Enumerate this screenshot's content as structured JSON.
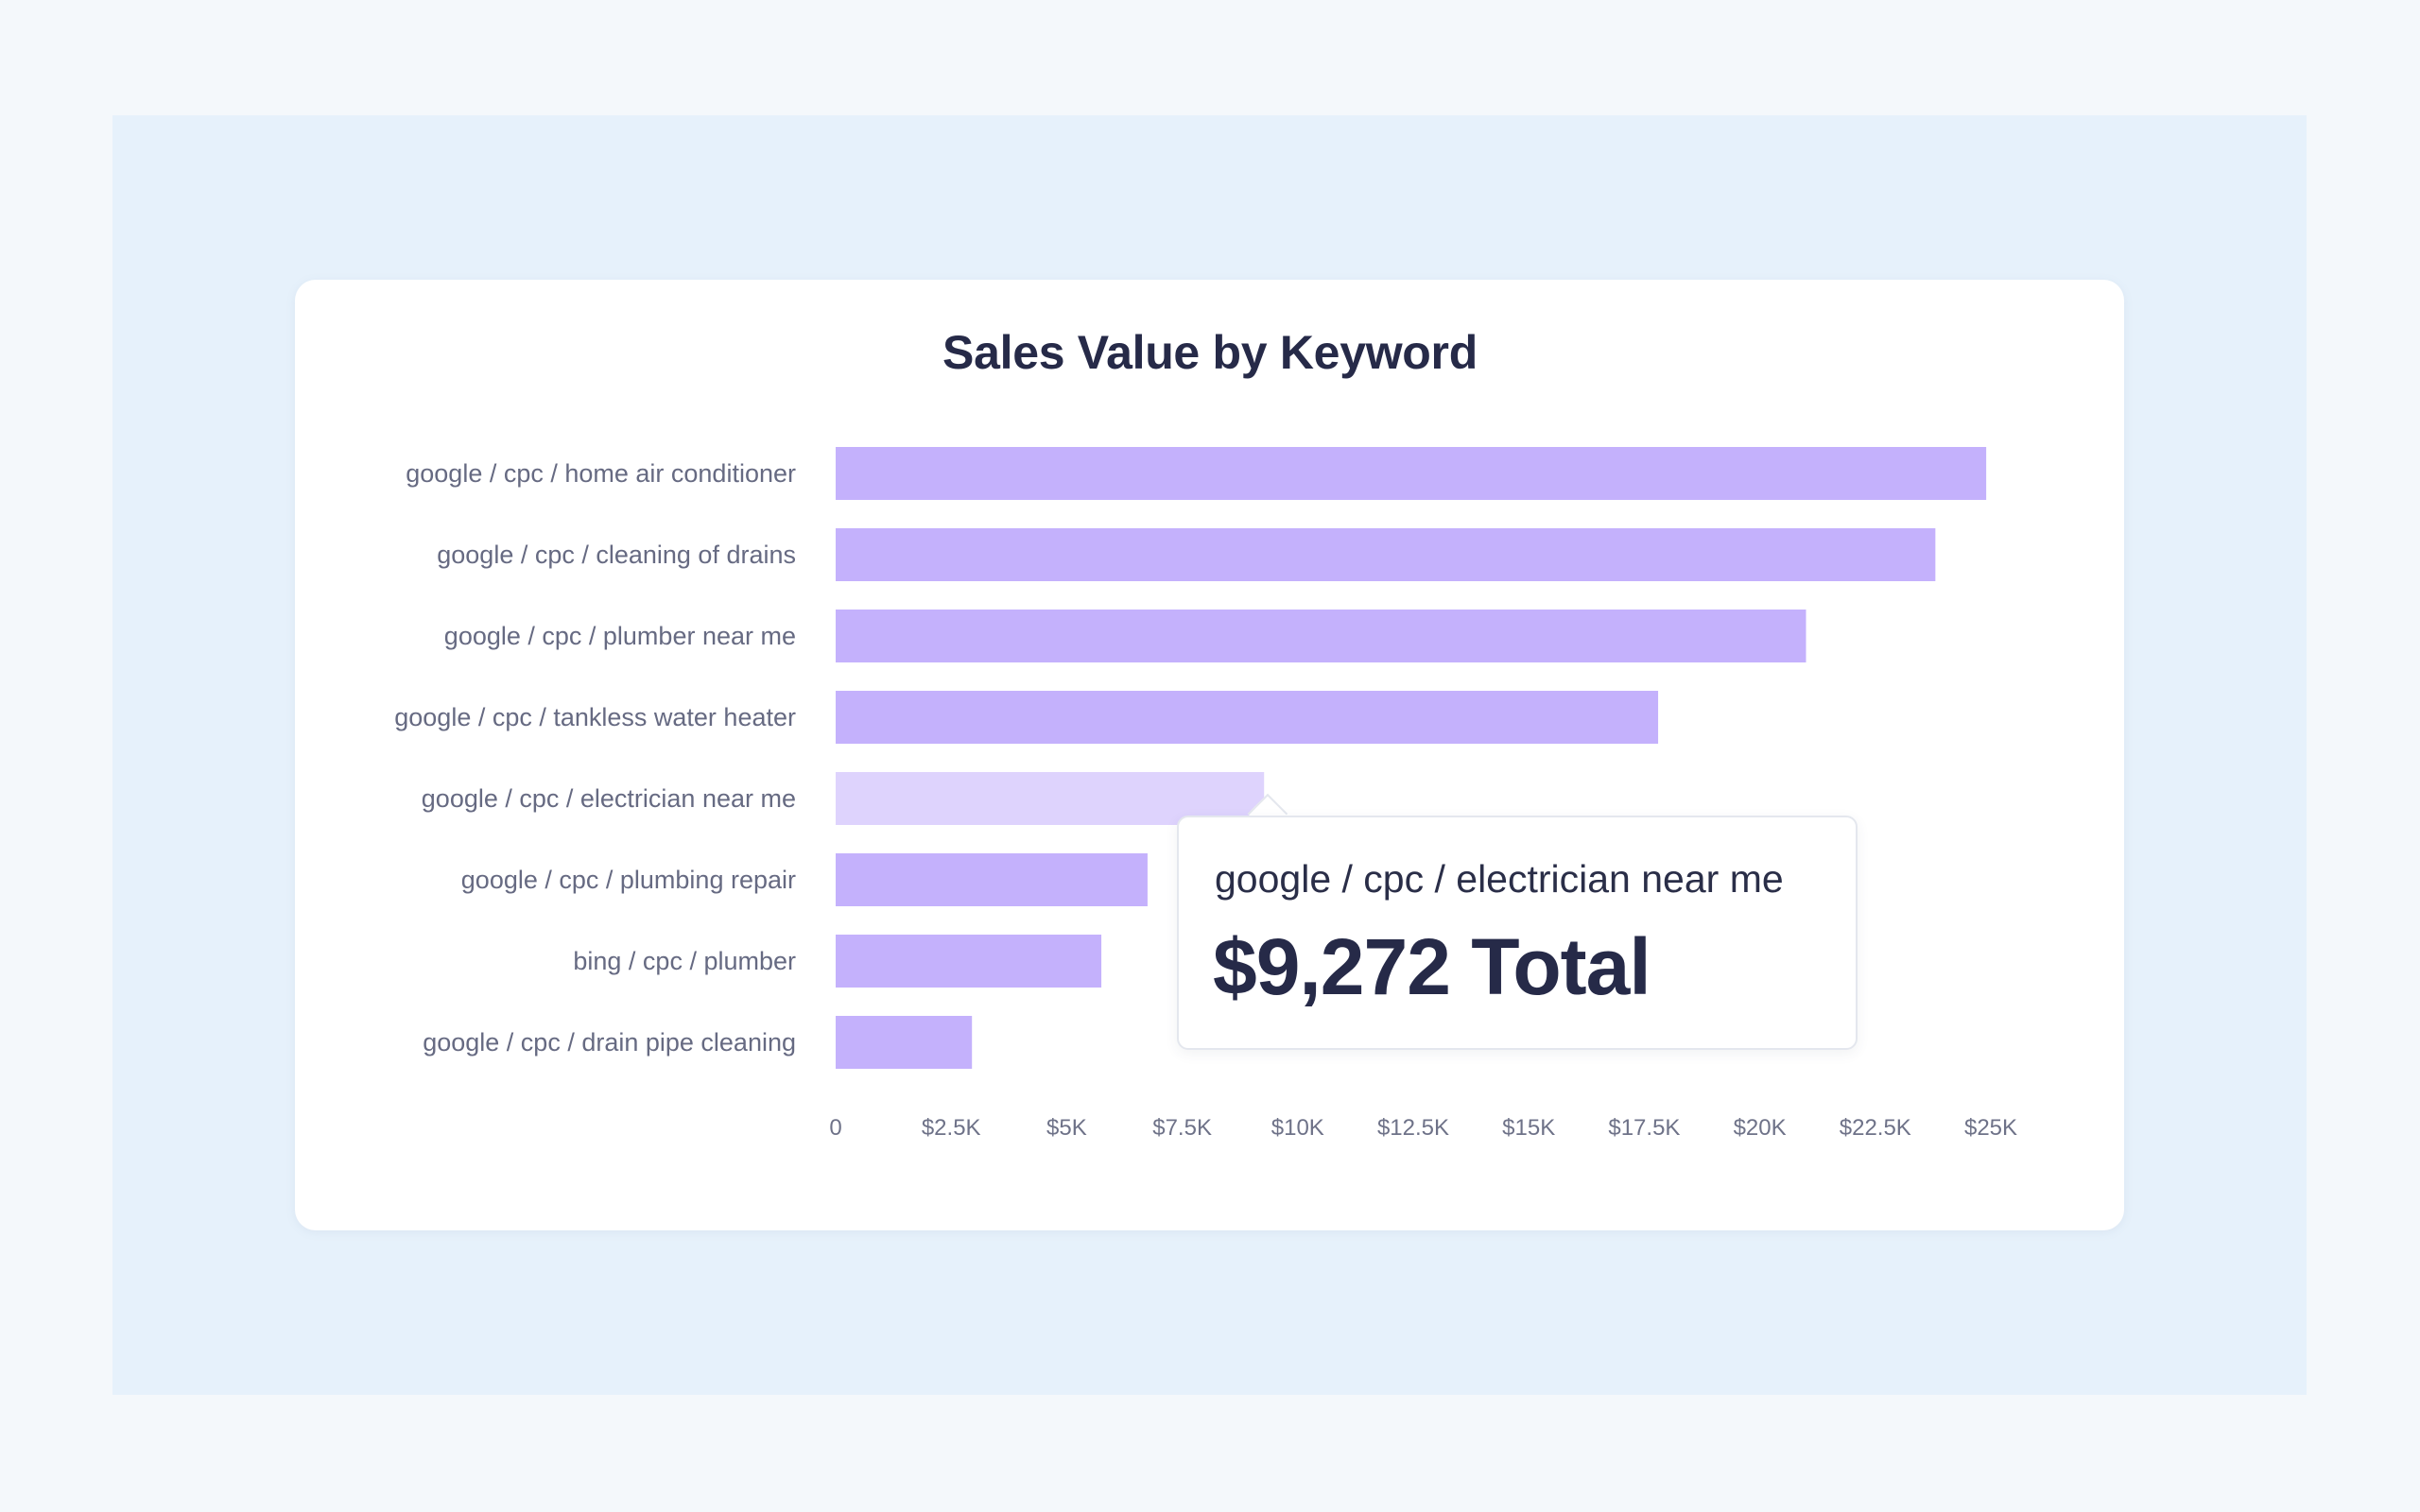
{
  "chart_data": {
    "type": "bar",
    "orientation": "horizontal",
    "title": "Sales Value by Keyword",
    "categories": [
      "google / cpc / home air conditioner",
      "google / cpc / cleaning of drains",
      "google / cpc / plumber near me",
      "google / cpc / tankless water heater",
      "google / cpc / electrician near me",
      "google / cpc / plumbing repair",
      "bing / cpc / plumber",
      "google / cpc / drain pipe cleaning"
    ],
    "values": [
      24900,
      23800,
      21000,
      17800,
      9272,
      6750,
      5750,
      2950
    ],
    "xlim": [
      0,
      25000
    ],
    "x_ticks": [
      0,
      2500,
      5000,
      7500,
      10000,
      12500,
      15000,
      17500,
      20000,
      22500,
      25000
    ],
    "x_tick_labels": [
      "0",
      "$2.5K",
      "$5K",
      "$7.5K",
      "$10K",
      "$12.5K",
      "$15K",
      "$17.5K",
      "$20K",
      "$22.5K",
      "$25K"
    ],
    "grid": false,
    "legend": "none",
    "highlighted_index": 4,
    "colors": {
      "bar": "#c4b1fc",
      "bar_highlight": "#ded3fd",
      "label": "#666a82",
      "title": "#262a48"
    }
  },
  "tooltip": {
    "label": "google / cpc / electrician near me",
    "value": "$9,272 Total"
  }
}
